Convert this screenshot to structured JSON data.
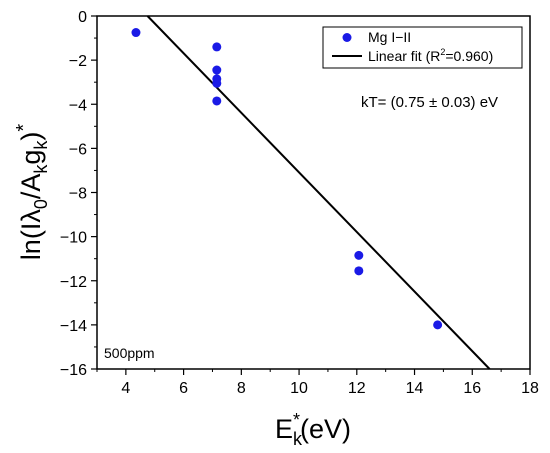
{
  "chart_data": {
    "type": "scatter",
    "xlim": [
      3,
      18
    ],
    "ylim": [
      -16,
      0
    ],
    "xticks": [
      4,
      6,
      8,
      10,
      12,
      14,
      16,
      18
    ],
    "yticks": [
      0,
      -2,
      -4,
      -6,
      -8,
      -10,
      -12,
      -14,
      -16
    ],
    "xlabel": {
      "base": "E",
      "sub": "k",
      "sup": "*",
      "rest": "(eV)"
    },
    "ylabel": "ln(Iλ0/Akgk)*",
    "grid": false,
    "legend_position": "top-right",
    "series": [
      {
        "name": "Mg I−II",
        "kind": "scatter",
        "color": "#1a1ae6",
        "points": [
          {
            "x": 4.35,
            "y": -0.75
          },
          {
            "x": 7.15,
            "y": -1.4
          },
          {
            "x": 7.15,
            "y": -2.45
          },
          {
            "x": 7.15,
            "y": -2.85
          },
          {
            "x": 7.15,
            "y": -3.05
          },
          {
            "x": 7.15,
            "y": -3.85
          },
          {
            "x": 12.07,
            "y": -10.85
          },
          {
            "x": 12.07,
            "y": -11.55
          },
          {
            "x": 14.8,
            "y": -14.0
          }
        ]
      },
      {
        "name": "Linear fit (R2=0.960)",
        "name_parts": {
          "pre": "Linear fit (R",
          "sup": "2",
          "post": "=0.960)"
        },
        "kind": "line",
        "color": "#000000",
        "points": [
          {
            "x": 4.75,
            "y": 0
          },
          {
            "x": 16.6,
            "y": -16
          }
        ]
      }
    ],
    "annotations": {
      "kt": "kT= (0.75 ± 0.03) eV",
      "sample": "500ppm"
    }
  }
}
